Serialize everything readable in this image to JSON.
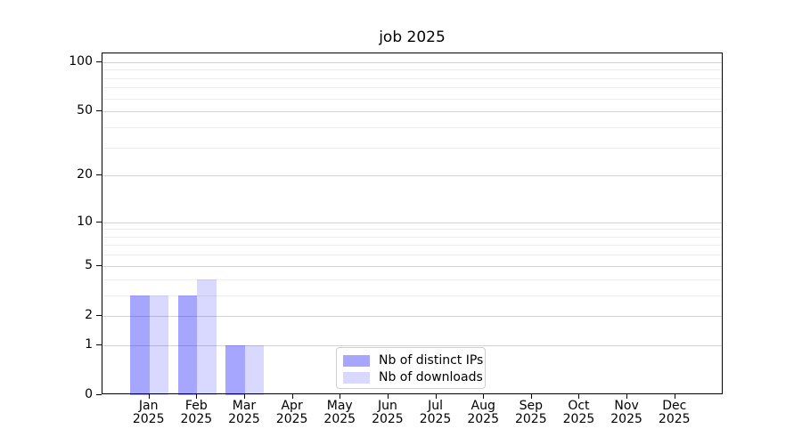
{
  "title": "job 2025",
  "legend": {
    "items": [
      {
        "label": "Nb of distinct IPs",
        "color": "#a6a6ff",
        "fill": "rgba(0,0,255,0.35)"
      },
      {
        "label": "Nb of downloads",
        "color": "#d9d9ff",
        "fill": "rgba(0,0,255,0.15)"
      }
    ]
  },
  "chart_data": {
    "type": "bar",
    "title": "job 2025",
    "categories": [
      "Jan 2025",
      "Feb 2025",
      "Mar 2025",
      "Apr 2025",
      "May 2025",
      "Jun 2025",
      "Jul 2025",
      "Aug 2025",
      "Sep 2025",
      "Oct 2025",
      "Nov 2025",
      "Dec 2025"
    ],
    "series": [
      {
        "name": "Nb of distinct IPs",
        "color": "#a6a6ff",
        "fill": "rgba(0,0,255,0.35)",
        "values": [
          3,
          3,
          1,
          0,
          0,
          0,
          0,
          0,
          0,
          0,
          0,
          0
        ]
      },
      {
        "name": "Nb of downloads",
        "color": "#d9d9ff",
        "fill": "rgba(0,0,255,0.15)",
        "values": [
          3,
          4,
          1,
          0,
          0,
          0,
          0,
          0,
          0,
          0,
          0,
          0
        ]
      }
    ],
    "xlabel": "",
    "ylabel": "",
    "yscale": "log10(1+v)",
    "ylim": [
      0,
      113
    ],
    "y_major_ticks": [
      0,
      1,
      2,
      5,
      10,
      20,
      50,
      100
    ],
    "y_minor_gridlines": [
      3,
      4,
      6,
      7,
      8,
      9,
      30,
      40,
      60,
      70,
      80,
      90
    ],
    "grid": "horizontal",
    "legend_position": "inside lower-center",
    "colors": {
      "major_grid": "#d4d4d4",
      "minor_grid": "#ededed",
      "axis": "#000000",
      "background": "#ffffff"
    }
  }
}
